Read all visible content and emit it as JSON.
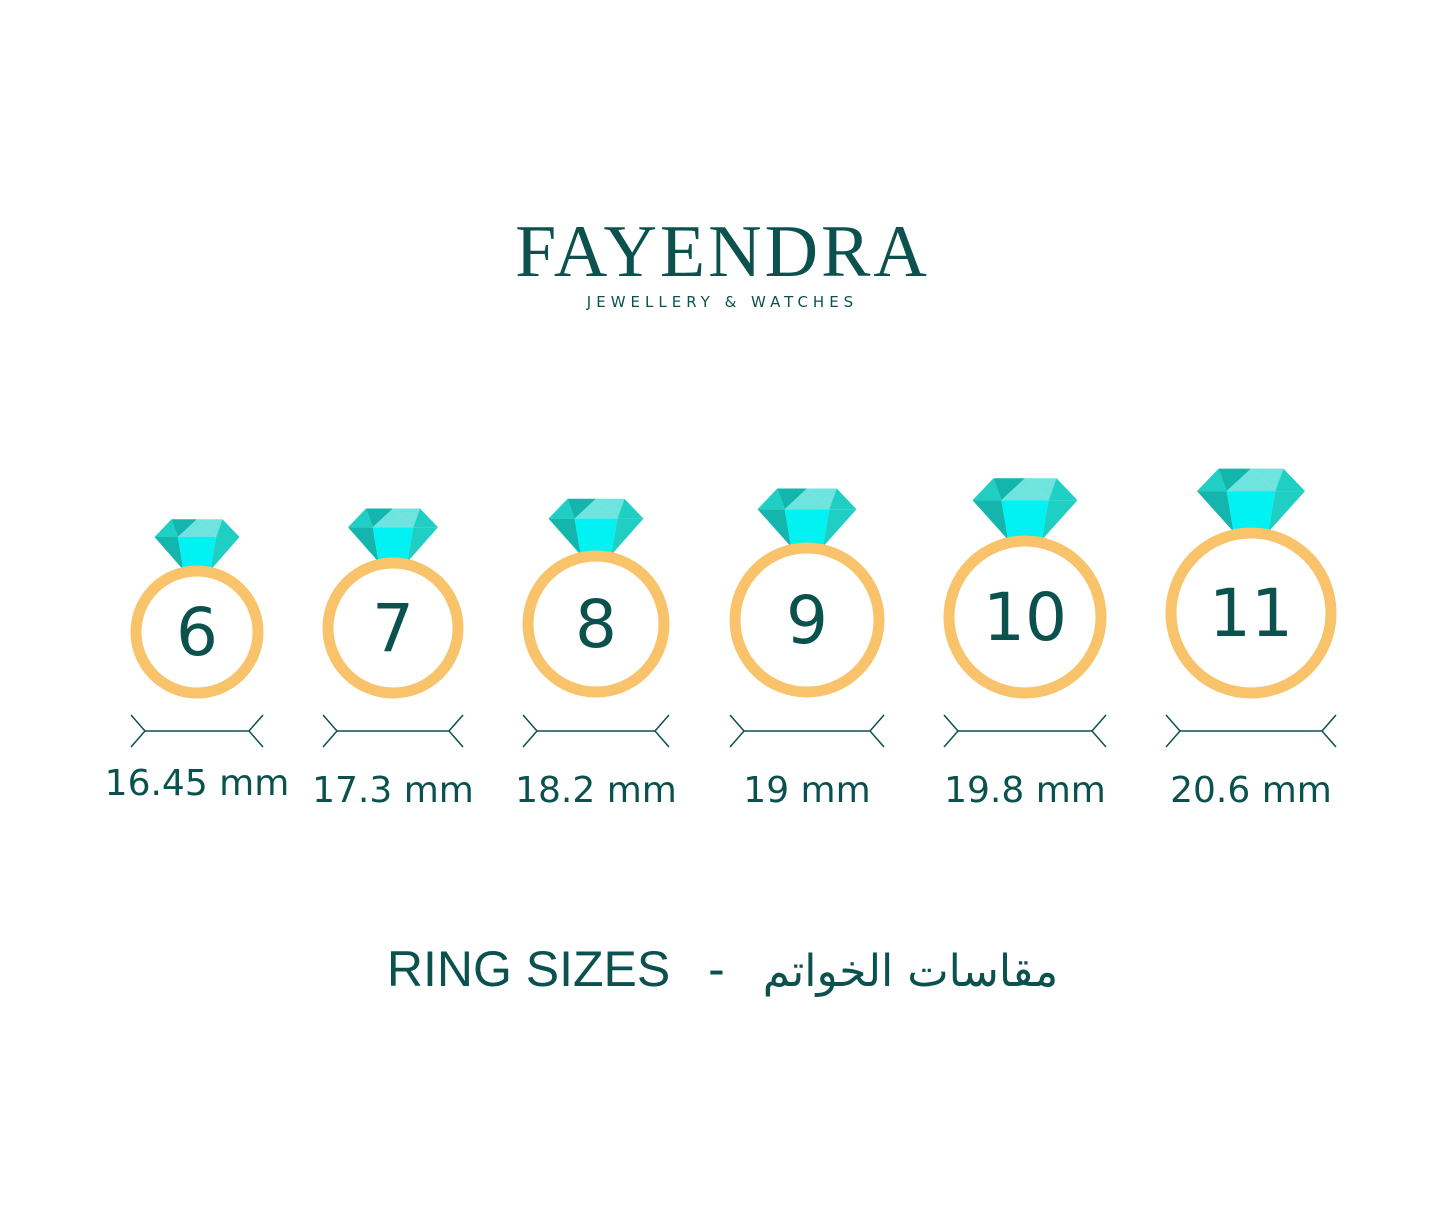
{
  "brand": {
    "name": "FAYENDRA",
    "tagline": "JEWELLERY & WATCHES"
  },
  "colors": {
    "text": "#0b524e",
    "ring": "#f8c36b",
    "gem_light": "#6fe3de",
    "gem_mid": "#1fcfc4",
    "gem_bright": "#00f2f2",
    "gem_dark": "#13b5ad"
  },
  "rings": [
    {
      "size": "6",
      "diameter": "16.45 mm"
    },
    {
      "size": "7",
      "diameter": "17.3 mm"
    },
    {
      "size": "8",
      "diameter": "18.2 mm"
    },
    {
      "size": "9",
      "diameter": "19 mm"
    },
    {
      "size": "10",
      "diameter": "19.8 mm"
    },
    {
      "size": "11",
      "diameter": "20.6 mm"
    }
  ],
  "title": {
    "english": "RING SIZES",
    "separator": "-",
    "arabic": "مقاسات الخواتم"
  }
}
